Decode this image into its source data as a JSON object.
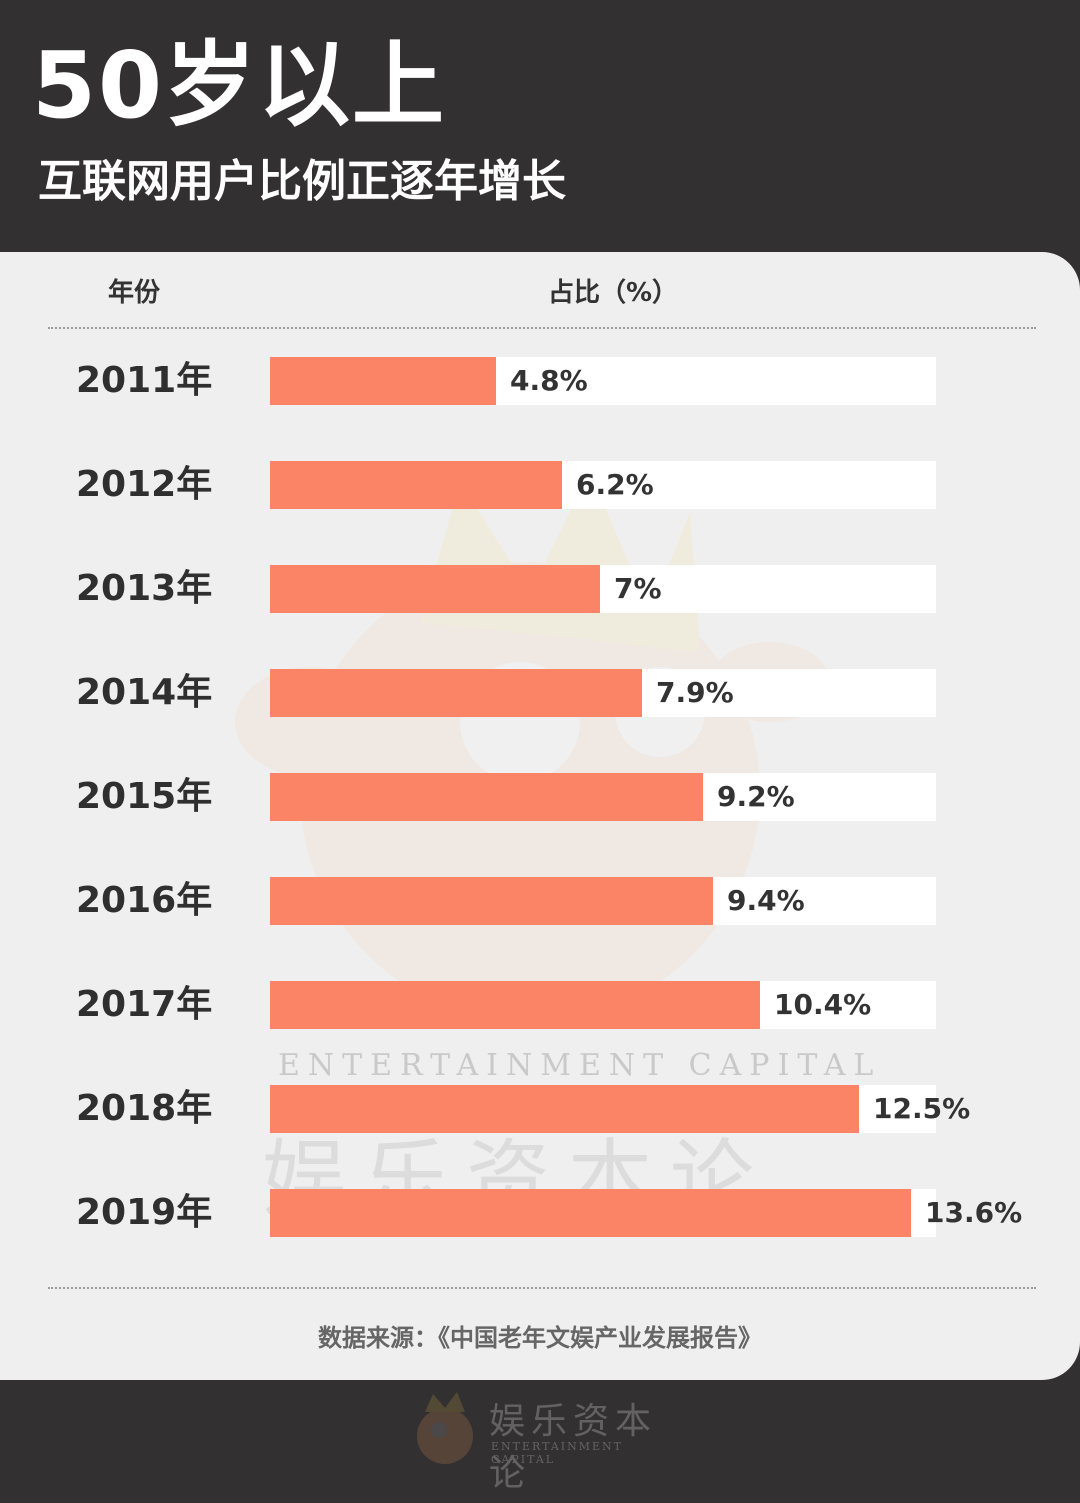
{
  "header": {
    "title": "50岁以上",
    "subtitle": "互联网用户比例正逐年增长"
  },
  "table_headers": {
    "year": "年份",
    "share": "占比（%）"
  },
  "source": "数据来源：《中国老年文娱产业发展报告》",
  "watermark": {
    "en": "ENTERTAINMENT CAPITAL",
    "cn": "娱乐资本论"
  },
  "colors": {
    "bar": "#fc8466",
    "track": "#ffffff",
    "background": "#333031",
    "card": "#efefef"
  },
  "chart_data": {
    "type": "bar",
    "orientation": "horizontal",
    "categories": [
      "2011年",
      "2012年",
      "2013年",
      "2014年",
      "2015年",
      "2016年",
      "2017年",
      "2018年",
      "2019年"
    ],
    "values": [
      4.8,
      6.2,
      7,
      7.9,
      9.2,
      9.4,
      10.4,
      12.5,
      13.6
    ],
    "value_labels": [
      "4.8%",
      "6.2%",
      "7%",
      "7.9%",
      "9.2%",
      "9.4%",
      "10.4%",
      "12.5%",
      "13.6%"
    ],
    "title": "50岁以上",
    "subtitle": "互联网用户比例正逐年增长",
    "xlabel": "占比（%）",
    "ylabel": "年份",
    "xlim": [
      0,
      14.14
    ],
    "grid": false,
    "legend": "none"
  }
}
